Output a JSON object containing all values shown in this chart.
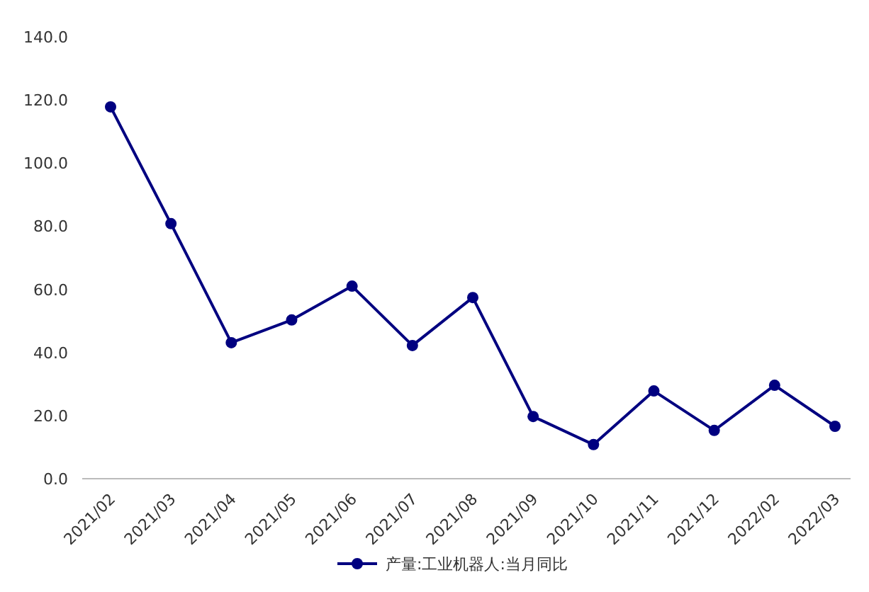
{
  "chart_data": {
    "type": "line",
    "categories": [
      "2021/02",
      "2021/03",
      "2021/04",
      "2021/05",
      "2021/06",
      "2021/07",
      "2021/08",
      "2021/09",
      "2021/10",
      "2021/11",
      "2021/12",
      "2022/02",
      "2022/03"
    ],
    "series": [
      {
        "name": "产量:工业机器人:当月同比",
        "color": "#000080",
        "values": [
          117.8,
          80.8,
          43.1,
          50.3,
          61.0,
          42.2,
          57.4,
          19.7,
          10.8,
          27.8,
          15.3,
          29.6,
          16.6
        ]
      }
    ],
    "ylim": [
      0,
      140
    ],
    "yticks": [
      {
        "value": 0,
        "label": "0.0"
      },
      {
        "value": 20,
        "label": "20.0"
      },
      {
        "value": 40,
        "label": "40.0"
      },
      {
        "value": 60,
        "label": "60.0"
      },
      {
        "value": 80,
        "label": "80.0"
      },
      {
        "value": 100,
        "label": "100.0"
      },
      {
        "value": 120,
        "label": "120.0"
      },
      {
        "value": 140,
        "label": "140.0"
      }
    ],
    "grid": false,
    "legend": "bottom",
    "marker": "circle",
    "line_style": "solid"
  }
}
